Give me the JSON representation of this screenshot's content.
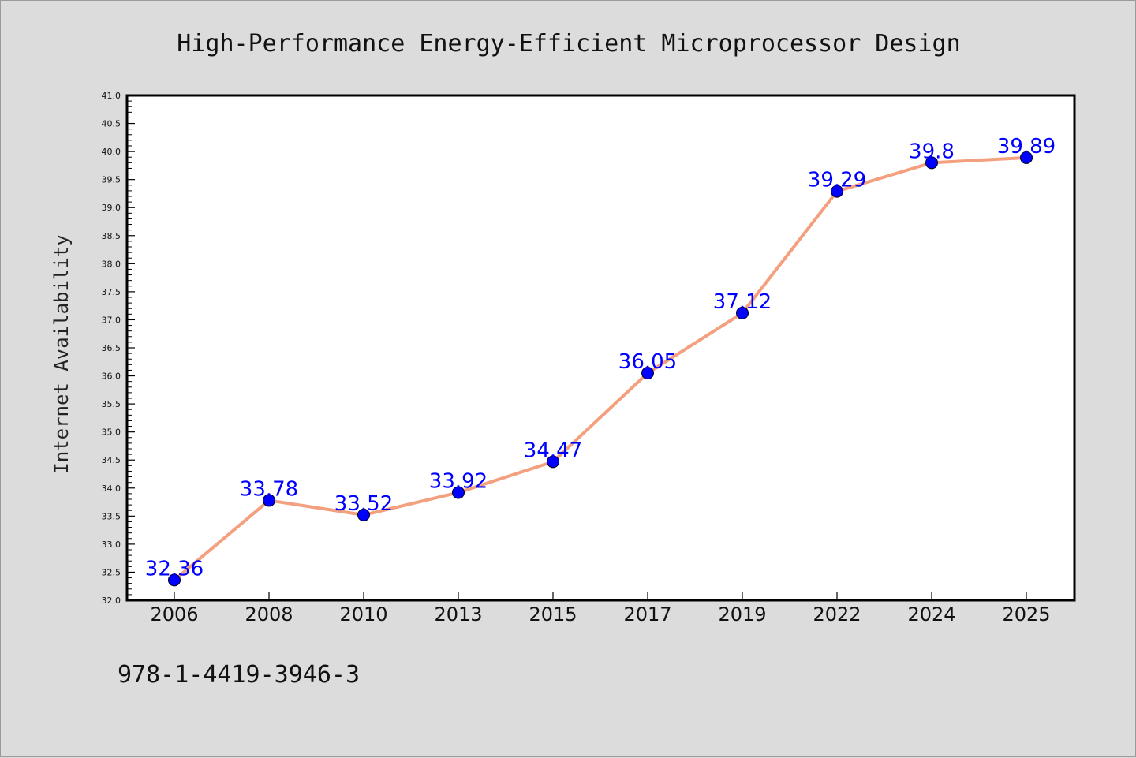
{
  "chart_data": {
    "type": "line",
    "title": "High-Performance Energy-Efficient Microprocessor Design",
    "xlabel": "",
    "ylabel": "Internet Availability",
    "categories": [
      "2006",
      "2008",
      "2010",
      "2013",
      "2015",
      "2017",
      "2019",
      "2022",
      "2024",
      "2025"
    ],
    "series": [
      {
        "values": [
          32.36,
          33.78,
          33.52,
          33.92,
          34.47,
          36.05,
          37.12,
          39.29,
          39.8,
          39.89
        ],
        "data_labels": [
          "32.36",
          "33.78",
          "33.52",
          "33.92",
          "34.47",
          "36.05",
          "37.12",
          "39.29",
          "39.8",
          "39.89"
        ],
        "line_color": "#f4a07f",
        "marker_color": "#0000ff",
        "label_color": "#0000ff"
      }
    ],
    "ylim": [
      32.0,
      41.0
    ],
    "yticks": [
      "32.0",
      "32.5",
      "33.0",
      "33.5",
      "34.0",
      "34.5",
      "35.0",
      "35.5",
      "36.0",
      "36.5",
      "37.0",
      "37.5",
      "38.0",
      "38.5",
      "39.0",
      "39.5",
      "40.0",
      "40.5",
      "41.0"
    ],
    "grid": false,
    "legend": "none"
  },
  "footer": {
    "isbn": "978-1-4419-3946-3"
  },
  "colors": {
    "background": "#dcdcdc",
    "plot_background": "#ffffff",
    "axis": "#000000"
  }
}
